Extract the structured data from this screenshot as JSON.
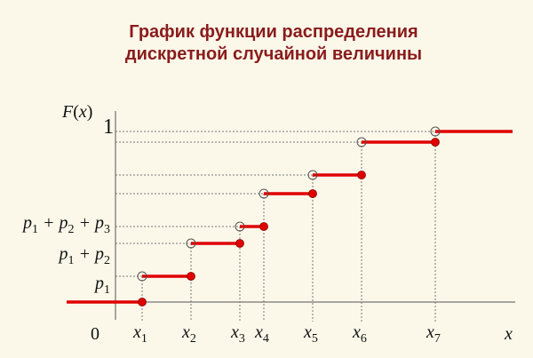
{
  "header": {
    "title": [
      "График функции распределения",
      "дискретной случайной величины"
    ]
  },
  "axes": {
    "y_label": [
      "F",
      "(",
      "x",
      ")"
    ],
    "x_label": "x",
    "origin": "0",
    "one": "1"
  },
  "y_labels": [
    [
      "p",
      "1"
    ],
    [
      "p",
      "1",
      " + p",
      "2"
    ],
    [
      "p",
      "1",
      " + p",
      "2",
      " + p",
      "3"
    ]
  ],
  "x_labels": [
    [
      "x",
      "1"
    ],
    [
      "x",
      "2"
    ],
    [
      "x",
      "3"
    ],
    [
      "x",
      "4"
    ],
    [
      "x",
      "5"
    ],
    [
      "x",
      "6"
    ],
    [
      "x",
      "7"
    ]
  ]
}
